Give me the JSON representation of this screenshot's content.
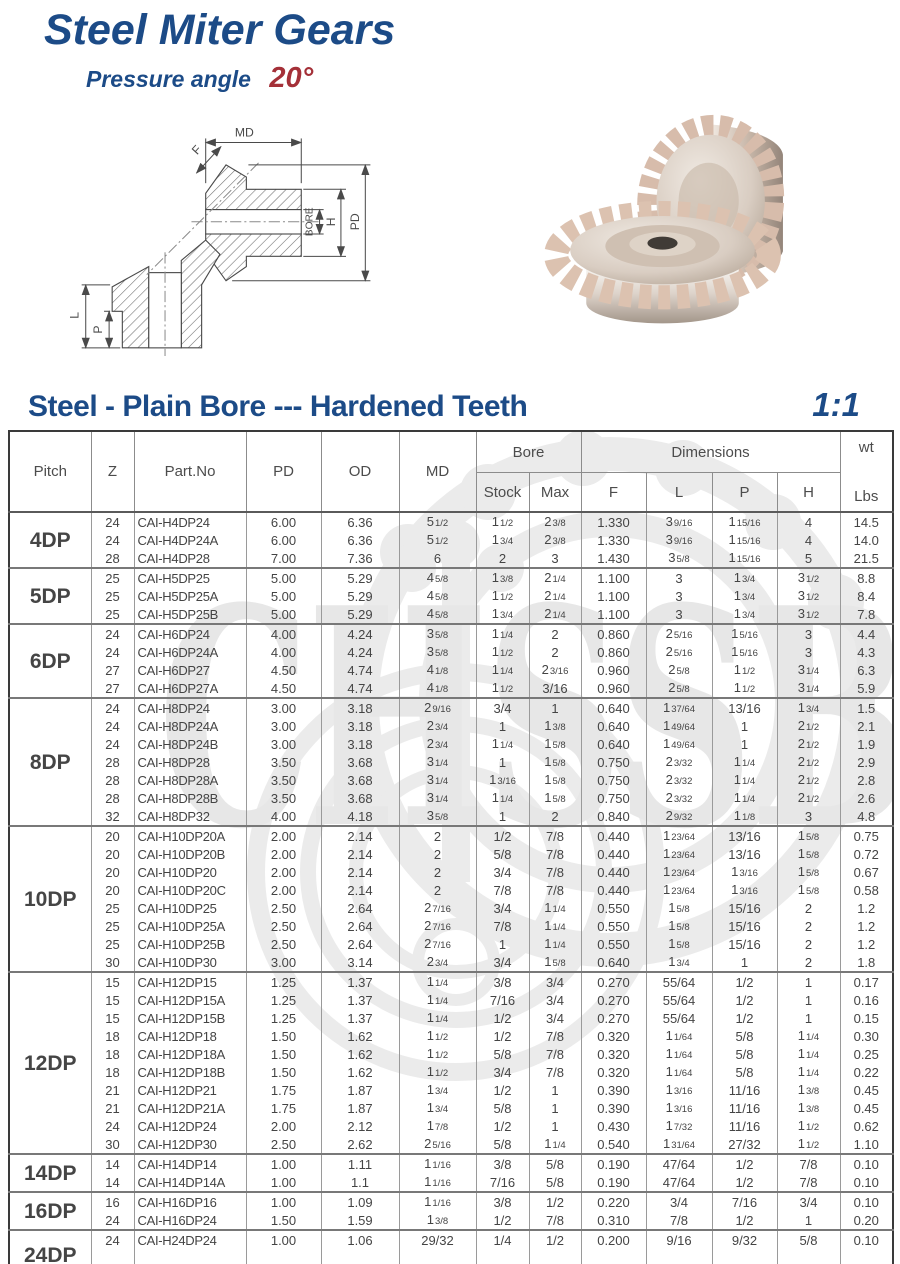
{
  "page": {
    "title": "Steel Miter Gears",
    "pressure_angle_label": "Pressure angle",
    "pressure_angle_value": "20°"
  },
  "section": {
    "title": "Steel - Plain Bore --- Hardened Teeth",
    "ratio": "1:1"
  },
  "watermark": {
    "text": "CHSSB"
  },
  "colors": {
    "brand_blue": "#1c4b87",
    "accent_red": "#a43038",
    "table_text": "#444444",
    "watermark_gray": "#e7e7e7"
  },
  "diagram": {
    "labels": {
      "md": "MD",
      "f": "F",
      "bore": "BORE",
      "h": "H",
      "pd": "PD",
      "l": "L",
      "p": "P"
    }
  },
  "table": {
    "headers": {
      "pitch": "Pitch",
      "z": "Z",
      "part": "Part.No",
      "pd": "PD",
      "od": "OD",
      "md": "MD",
      "bore": "Bore",
      "stock": "Stock",
      "max": "Max",
      "dims": "Dimensions",
      "f": "F",
      "l": "L",
      "p": "P",
      "h": "H",
      "wt": "wt",
      "lbs": "Lbs"
    },
    "columns": [
      "z",
      "part",
      "pd",
      "od",
      "md",
      "stock",
      "max",
      "f",
      "l",
      "p",
      "h",
      "lbs"
    ],
    "groups": [
      {
        "pitch": "4DP",
        "rows": [
          [
            "24",
            "CAI-H4DP24",
            "6.00",
            "6.36",
            "5 1/2",
            "1 1/2",
            "2 3/8",
            "1.330",
            "3 9/16",
            "1 15/16",
            "4",
            "14.5"
          ],
          [
            "24",
            "CAI-H4DP24A",
            "6.00",
            "6.36",
            "5 1/2",
            "1 3/4",
            "2 3/8",
            "1.330",
            "3 9/16",
            "1 15/16",
            "4",
            "14.0"
          ],
          [
            "28",
            "CAI-H4DP28",
            "7.00",
            "7.36",
            "6",
            "2",
            "3",
            "1.430",
            "3 5/8",
            "1 15/16",
            "5",
            "21.5"
          ]
        ]
      },
      {
        "pitch": "5DP",
        "rows": [
          [
            "25",
            "CAI-H5DP25",
            "5.00",
            "5.29",
            "4 5/8",
            "1 3/8",
            "2 1/4",
            "1.100",
            "3",
            "1 3/4",
            "3 1/2",
            "8.8"
          ],
          [
            "25",
            "CAI-H5DP25A",
            "5.00",
            "5.29",
            "4 5/8",
            "1 1/2",
            "2 1/4",
            "1.100",
            "3",
            "1 3/4",
            "3 1/2",
            "8.4"
          ],
          [
            "25",
            "CAI-H5DP25B",
            "5.00",
            "5.29",
            "4 5/8",
            "1 3/4",
            "2 1/4",
            "1.100",
            "3",
            "1 3/4",
            "3 1/2",
            "7.8"
          ]
        ]
      },
      {
        "pitch": "6DP",
        "rows": [
          [
            "24",
            "CAI-H6DP24",
            "4.00",
            "4.24",
            "3 5/8",
            "1 1/4",
            "2",
            "0.860",
            "2 5/16",
            "1 5/16",
            "3",
            "4.4"
          ],
          [
            "24",
            "CAI-H6DP24A",
            "4.00",
            "4.24",
            "3 5/8",
            "1 1/2",
            "2",
            "0.860",
            "2 5/16",
            "1 5/16",
            "3",
            "4.3"
          ],
          [
            "27",
            "CAI-H6DP27",
            "4.50",
            "4.74",
            "4 1/8",
            "1 1/4",
            "2 3/16",
            "0.960",
            "2 5/8",
            "1 1/2",
            "3 1/4",
            "6.3"
          ],
          [
            "27",
            "CAI-H6DP27A",
            "4.50",
            "4.74",
            "4 1/8",
            "1 1/2",
            "3/16",
            "0.960",
            "2 5/8",
            "1 1/2",
            "3 1/4",
            "5.9"
          ]
        ]
      },
      {
        "pitch": "8DP",
        "rows": [
          [
            "24",
            "CAI-H8DP24",
            "3.00",
            "3.18",
            "2 9/16",
            "3/4",
            "1",
            "0.640",
            "1 37/64",
            "13/16",
            "1 3/4",
            "1.5"
          ],
          [
            "24",
            "CAI-H8DP24A",
            "3.00",
            "3.18",
            "2 3/4",
            "1",
            "1 3/8",
            "0.640",
            "1 49/64",
            "1",
            "2 1/2",
            "2.1"
          ],
          [
            "24",
            "CAI-H8DP24B",
            "3.00",
            "3.18",
            "2 3/4",
            "1 1/4",
            "1 5/8",
            "0.640",
            "1 49/64",
            "1",
            "2 1/2",
            "1.9"
          ],
          [
            "28",
            "CAI-H8DP28",
            "3.50",
            "3.68",
            "3 1/4",
            "1",
            "1 5/8",
            "0.750",
            "2 3/32",
            "1 1/4",
            "2 1/2",
            "2.9"
          ],
          [
            "28",
            "CAI-H8DP28A",
            "3.50",
            "3.68",
            "3 1/4",
            "1 3/16",
            "1 5/8",
            "0.750",
            "2 3/32",
            "1 1/4",
            "2 1/2",
            "2.8"
          ],
          [
            "28",
            "CAI-H8DP28B",
            "3.50",
            "3.68",
            "3 1/4",
            "1 1/4",
            "1 5/8",
            "0.750",
            "2 3/32",
            "1 1/4",
            "2 1/2",
            "2.6"
          ],
          [
            "32",
            "CAI-H8DP32",
            "4.00",
            "4.18",
            "3 5/8",
            "1",
            "2",
            "0.840",
            "2 9/32",
            "1 1/8",
            "3",
            "4.8"
          ]
        ]
      },
      {
        "pitch": "10DP",
        "rows": [
          [
            "20",
            "CAI-H10DP20A",
            "2.00",
            "2.14",
            "2",
            "1/2",
            "7/8",
            "0.440",
            "1 23/64",
            "13/16",
            "1 5/8",
            "0.75"
          ],
          [
            "20",
            "CAI-H10DP20B",
            "2.00",
            "2.14",
            "2",
            "5/8",
            "7/8",
            "0.440",
            "1 23/64",
            "13/16",
            "1 5/8",
            "0.72"
          ],
          [
            "20",
            "CAI-H10DP20",
            "2.00",
            "2.14",
            "2",
            "3/4",
            "7/8",
            "0.440",
            "1 23/64",
            "1 3/16",
            "1 5/8",
            "0.67"
          ],
          [
            "20",
            "CAI-H10DP20C",
            "2.00",
            "2.14",
            "2",
            "7/8",
            "7/8",
            "0.440",
            "1 23/64",
            "1 3/16",
            "1 5/8",
            "0.58"
          ],
          [
            "25",
            "CAI-H10DP25",
            "2.50",
            "2.64",
            "2 7/16",
            "3/4",
            "1 1/4",
            "0.550",
            "1 5/8",
            "15/16",
            "2",
            "1.2"
          ],
          [
            "25",
            "CAI-H10DP25A",
            "2.50",
            "2.64",
            "2 7/16",
            "7/8",
            "1 1/4",
            "0.550",
            "1 5/8",
            "15/16",
            "2",
            "1.2"
          ],
          [
            "25",
            "CAI-H10DP25B",
            "2.50",
            "2.64",
            "2 7/16",
            "1",
            "1 1/4",
            "0.550",
            "1 5/8",
            "15/16",
            "2",
            "1.2"
          ],
          [
            "30",
            "CAI-H10DP30",
            "3.00",
            "3.14",
            "2 3/4",
            "3/4",
            "1 5/8",
            "0.640",
            "1 3/4",
            "1",
            "2",
            "1.8"
          ]
        ]
      },
      {
        "pitch": "12DP",
        "rows": [
          [
            "15",
            "CAI-H12DP15",
            "1.25",
            "1.37",
            "1 1/4",
            "3/8",
            "3/4",
            "0.270",
            "55/64",
            "1/2",
            "1",
            "0.17"
          ],
          [
            "15",
            "CAI-H12DP15A",
            "1.25",
            "1.37",
            "1 1/4",
            "7/16",
            "3/4",
            "0.270",
            "55/64",
            "1/2",
            "1",
            "0.16"
          ],
          [
            "15",
            "CAI-H12DP15B",
            "1.25",
            "1.37",
            "1 1/4",
            "1/2",
            "3/4",
            "0.270",
            "55/64",
            "1/2",
            "1",
            "0.15"
          ],
          [
            "18",
            "CAI-H12DP18",
            "1.50",
            "1.62",
            "1 1/2",
            "1/2",
            "7/8",
            "0.320",
            "1 1/64",
            "5/8",
            "1 1/4",
            "0.30"
          ],
          [
            "18",
            "CAI-H12DP18A",
            "1.50",
            "1.62",
            "1 1/2",
            "5/8",
            "7/8",
            "0.320",
            "1 1/64",
            "5/8",
            "1 1/4",
            "0.25"
          ],
          [
            "18",
            "CAI-H12DP18B",
            "1.50",
            "1.62",
            "1 1/2",
            "3/4",
            "7/8",
            "0.320",
            "1 1/64",
            "5/8",
            "1 1/4",
            "0.22"
          ],
          [
            "21",
            "CAI-H12DP21",
            "1.75",
            "1.87",
            "1 3/4",
            "1/2",
            "1",
            "0.390",
            "1 3/16",
            "11/16",
            "1 3/8",
            "0.45"
          ],
          [
            "21",
            "CAI-H12DP21A",
            "1.75",
            "1.87",
            "1 3/4",
            "5/8",
            "1",
            "0.390",
            "1 3/16",
            "11/16",
            "1 3/8",
            "0.45"
          ],
          [
            "24",
            "CAI-H12DP24",
            "2.00",
            "2.12",
            "1 7/8",
            "1/2",
            "1",
            "0.430",
            "1 7/32",
            "11/16",
            "1 1/2",
            "0.62"
          ],
          [
            "30",
            "CAI-H12DP30",
            "2.50",
            "2.62",
            "2 5/16",
            "5/8",
            "1 1/4",
            "0.540",
            "1 31/64",
            "27/32",
            "1 1/2",
            "1.10"
          ]
        ]
      },
      {
        "pitch": "14DP",
        "rows": [
          [
            "14",
            "CAI-H14DP14",
            "1.00",
            "1.11",
            "1 1/16",
            "3/8",
            "5/8",
            "0.190",
            "47/64",
            "1/2",
            "7/8",
            "0.10"
          ],
          [
            "14",
            "CAI-H14DP14A",
            "1.00",
            "1.1",
            "1 1/16",
            "7/16",
            "5/8",
            "0.190",
            "47/64",
            "1/2",
            "7/8",
            "0.10"
          ]
        ]
      },
      {
        "pitch": "16DP",
        "rows": [
          [
            "16",
            "CAI-H16DP16",
            "1.00",
            "1.09",
            "1 1/16",
            "3/8",
            "1/2",
            "0.220",
            "3/4",
            "7/16",
            "3/4",
            "0.10"
          ],
          [
            "24",
            "CAI-H16DP24",
            "1.50",
            "1.59",
            "1 3/8",
            "1/2",
            "7/8",
            "0.310",
            "7/8",
            "1/2",
            "1",
            "0.20"
          ]
        ]
      },
      {
        "pitch": "24DP",
        "tall": true,
        "rows": [
          [
            "24",
            "CAI-H24DP24",
            "1.00",
            "1.06",
            "29/32",
            "1/4",
            "1/2",
            "0.200",
            "9/16",
            "9/32",
            "5/8",
            "0.10"
          ]
        ]
      }
    ]
  }
}
